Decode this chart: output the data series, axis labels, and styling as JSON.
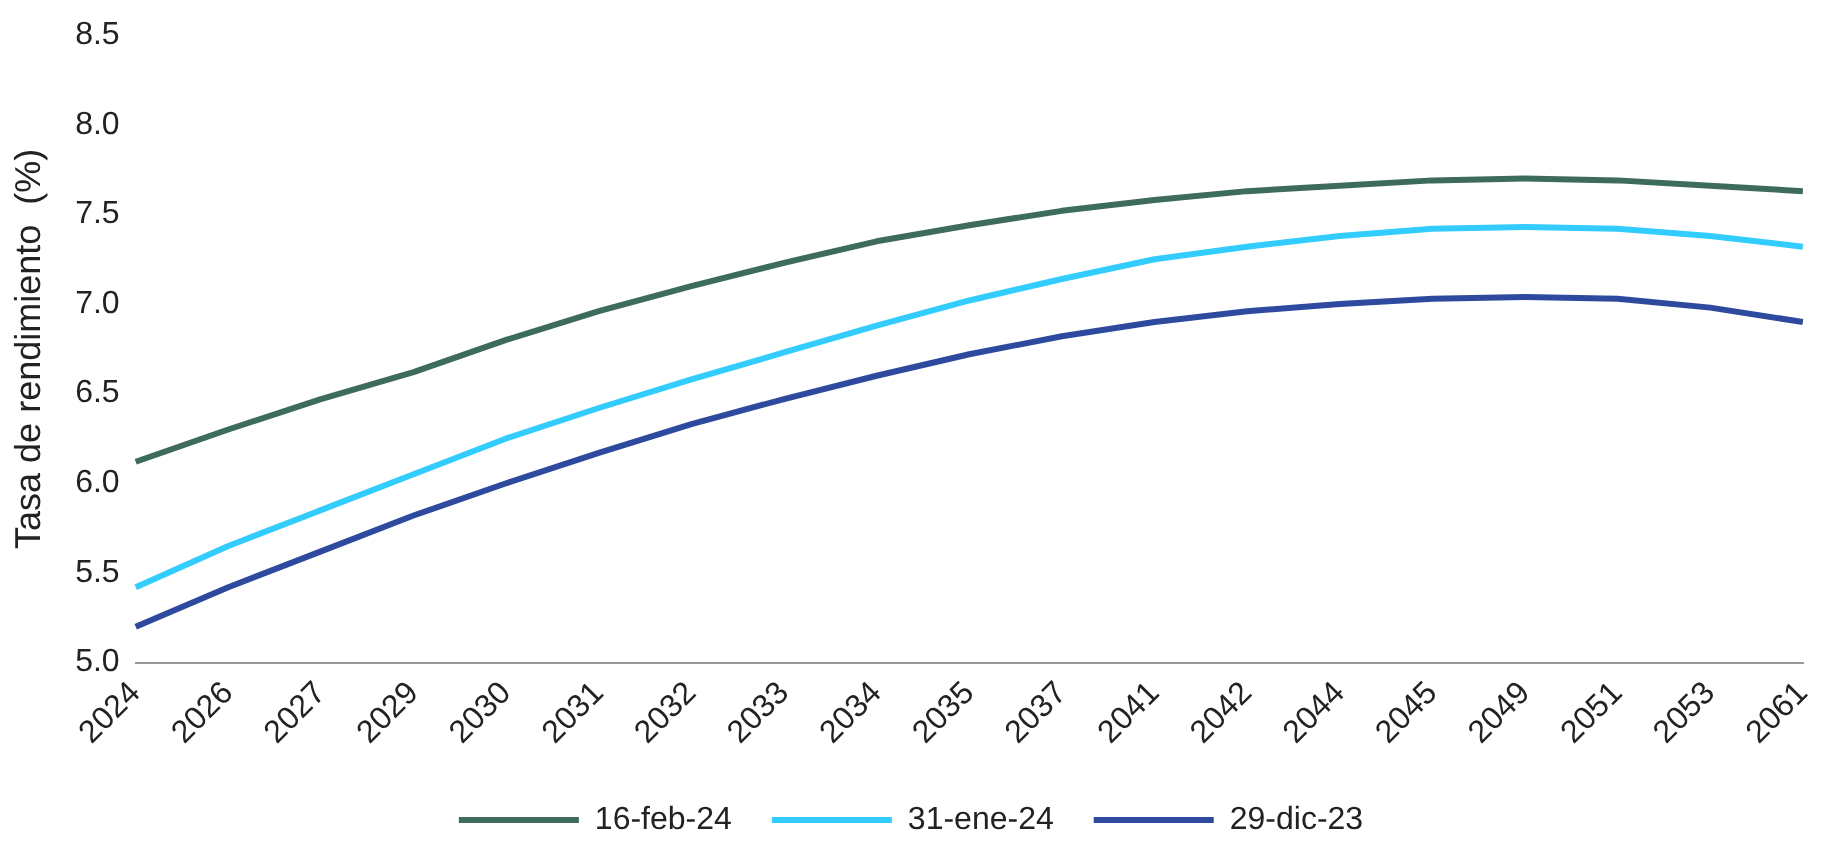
{
  "chart_data": {
    "type": "line",
    "ylabel": "Tasa de rendimiento  (%)",
    "categories": [
      "2024",
      "2026",
      "2027",
      "2029",
      "2030",
      "2031",
      "2032",
      "2033",
      "2034",
      "2035",
      "2037",
      "2041",
      "2042",
      "2044",
      "2045",
      "2049",
      "2051",
      "2053",
      "2061"
    ],
    "series": [
      {
        "name": "16-feb-24",
        "color": "#3d6b5e",
        "values": [
          6.12,
          6.3,
          6.47,
          6.62,
          6.8,
          6.96,
          7.1,
          7.23,
          7.35,
          7.44,
          7.52,
          7.58,
          7.63,
          7.66,
          7.69,
          7.7,
          7.69,
          7.66,
          7.63
        ]
      },
      {
        "name": "31-ene-24",
        "color": "#33ccff",
        "values": [
          5.42,
          5.65,
          5.85,
          6.05,
          6.25,
          6.42,
          6.58,
          6.73,
          6.88,
          7.02,
          7.14,
          7.25,
          7.32,
          7.38,
          7.42,
          7.43,
          7.42,
          7.38,
          7.32
        ]
      },
      {
        "name": "29-dic-23",
        "color": "#2e4a9e",
        "values": [
          5.2,
          5.42,
          5.62,
          5.82,
          6.0,
          6.17,
          6.33,
          6.47,
          6.6,
          6.72,
          6.82,
          6.9,
          6.96,
          7.0,
          7.03,
          7.04,
          7.03,
          6.98,
          6.9
        ]
      }
    ],
    "ylim": [
      5,
      8.5
    ],
    "yticks": [
      {
        "value": 5,
        "label": "5.0"
      },
      {
        "value": 5.5,
        "label": "5.5"
      },
      {
        "value": 6,
        "label": "6.0"
      },
      {
        "value": 6.5,
        "label": "6.5"
      },
      {
        "value": 7,
        "label": "7.0"
      },
      {
        "value": 7.5,
        "label": "7.5"
      },
      {
        "value": 8,
        "label": "8.0"
      },
      {
        "value": 8.5,
        "label": "8.5"
      }
    ],
    "grid": false,
    "legend": "bottom",
    "marker": "none",
    "line_style": "solid"
  }
}
